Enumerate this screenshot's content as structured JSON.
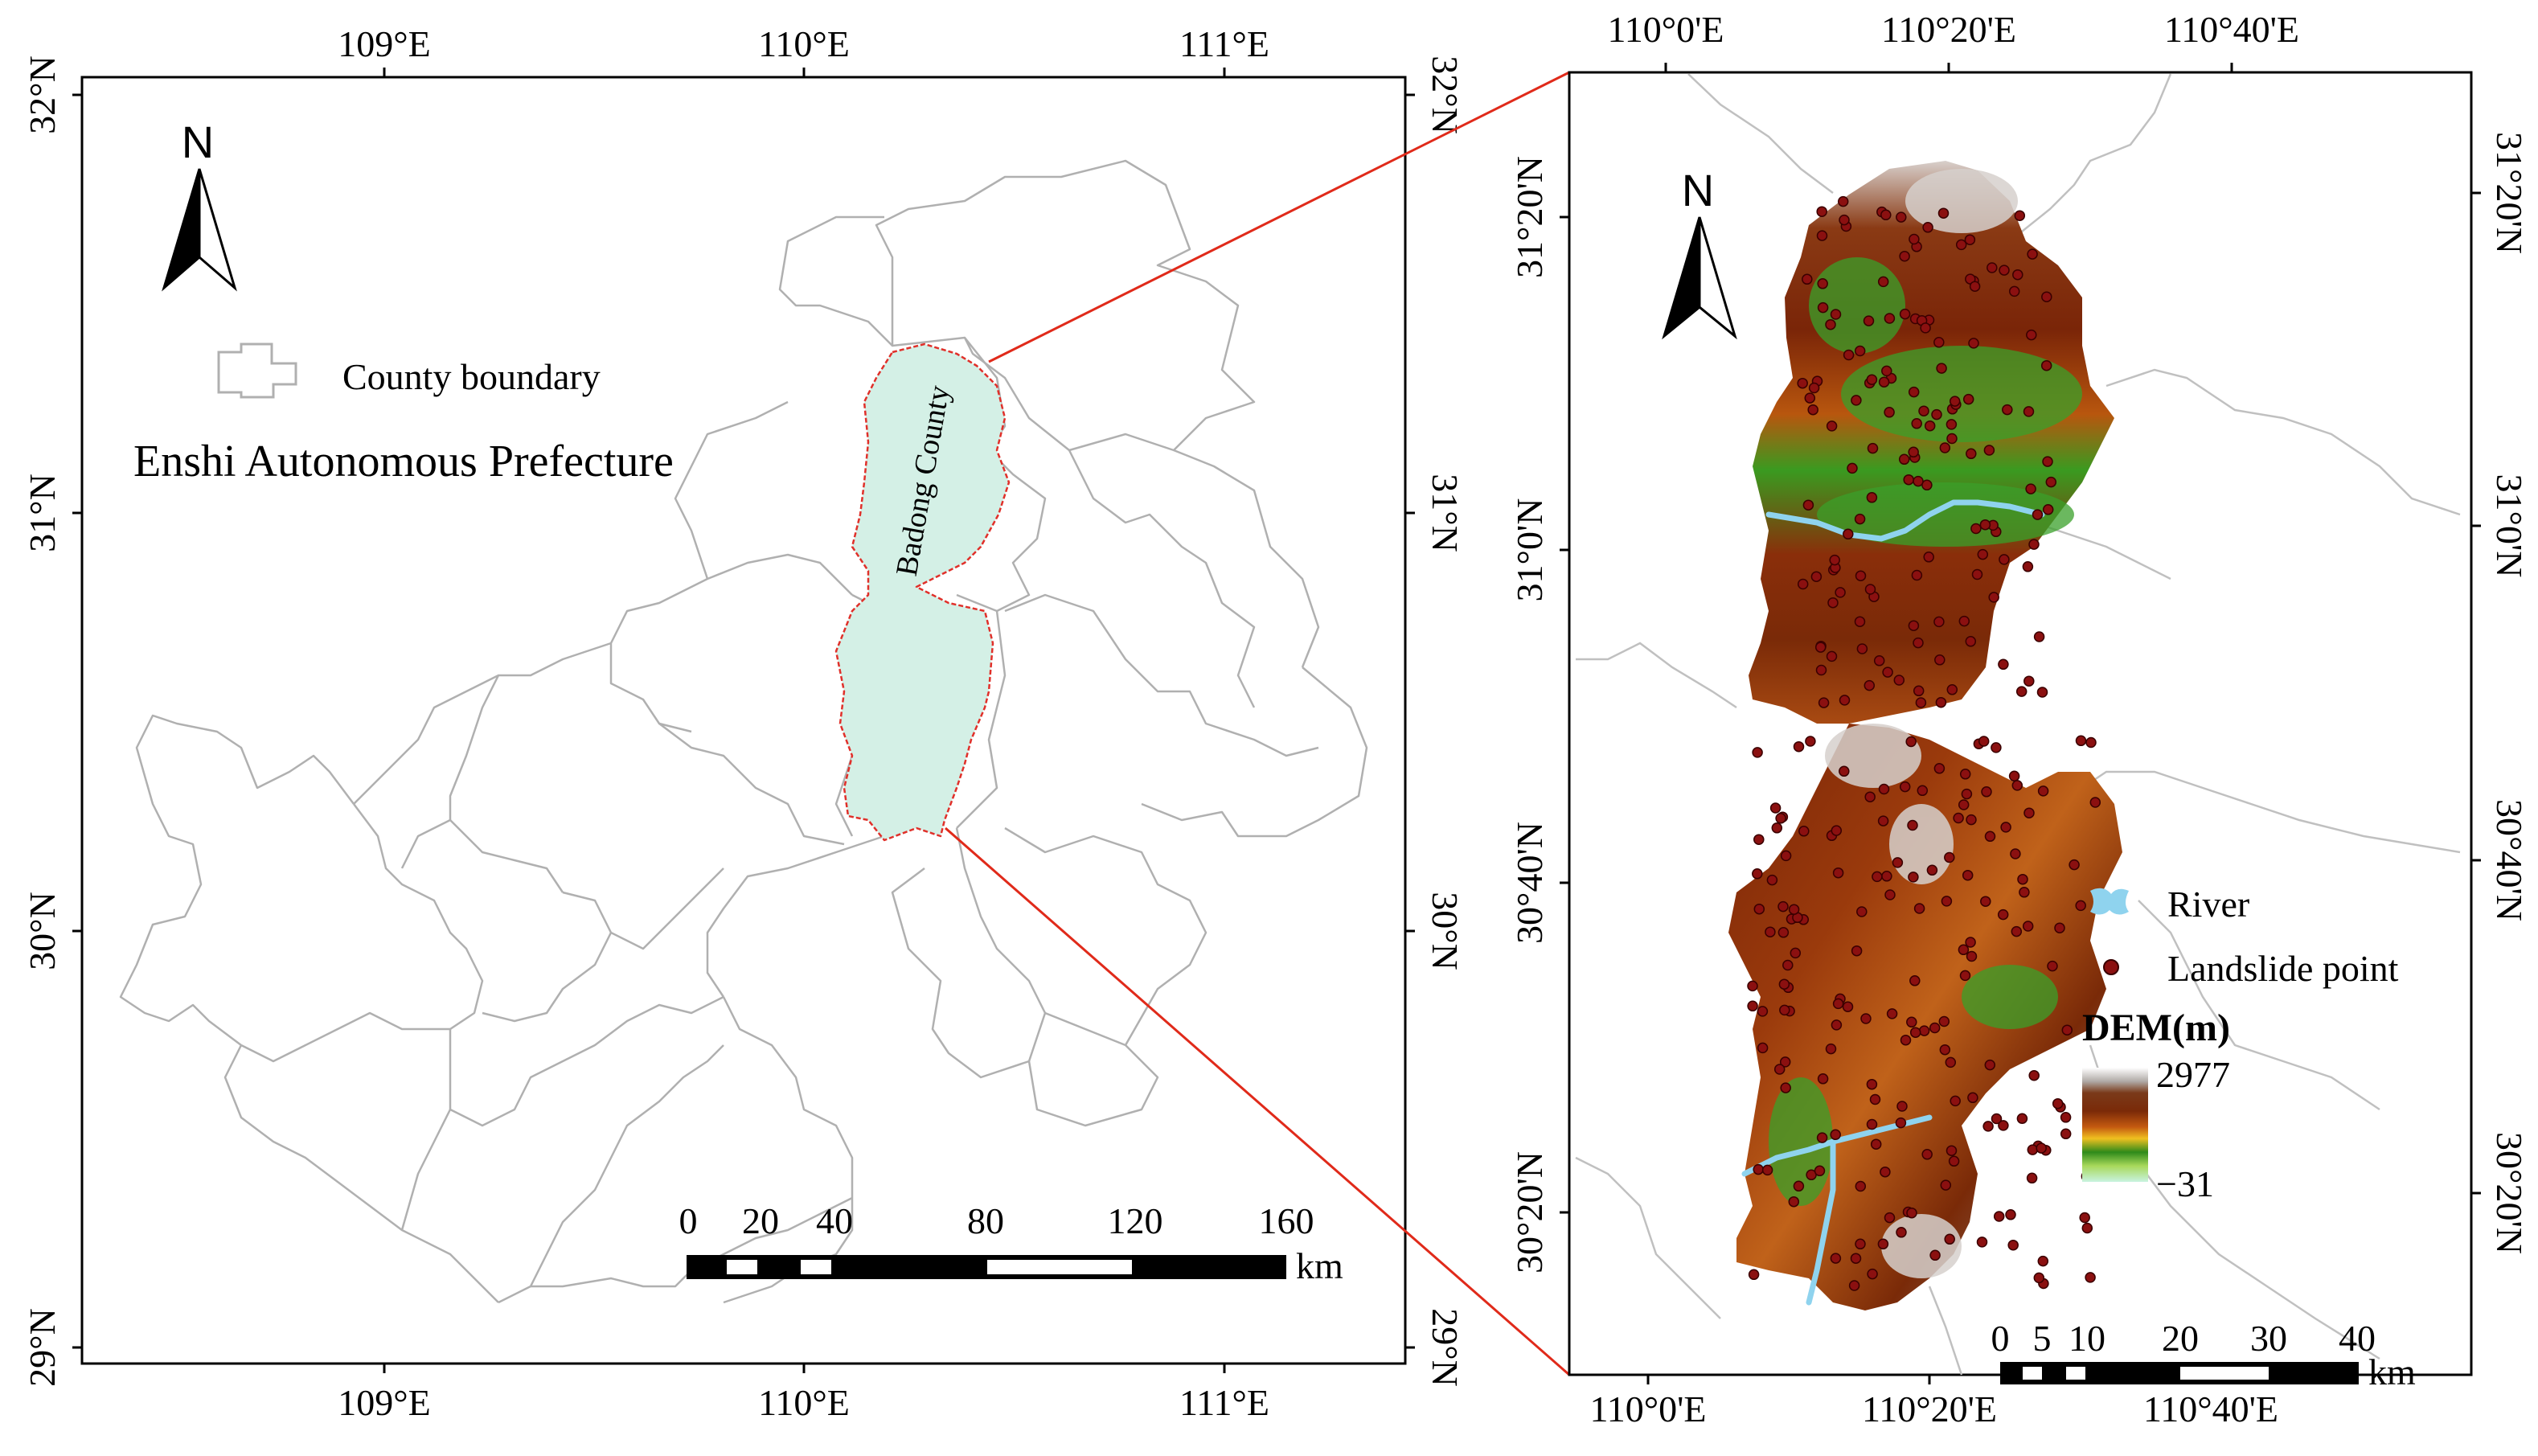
{
  "left_map": {
    "top_lon_labels": [
      "109°E",
      "110°E",
      "111°E"
    ],
    "bottom_lon_labels": [
      "109°E",
      "110°E",
      "111°E"
    ],
    "left_lat_labels": [
      "32°N",
      "31°N",
      "30°N",
      "29°N"
    ],
    "right_lat_labels": [
      "32°N",
      "31°N",
      "30°N",
      "29°N"
    ],
    "north_label": "N",
    "legend_label": "County boundary",
    "title": "Enshi  Autonomous Prefecture",
    "county_label": "Badong County",
    "scale_ticks": [
      "0",
      "20",
      "40",
      "80",
      "120",
      "160"
    ],
    "scale_unit": "km"
  },
  "right_map": {
    "top_lon_labels": [
      "110°0'E",
      "110°20'E",
      "110°40'E"
    ],
    "bottom_lon_labels": [
      "110°0'E",
      "110°20'E",
      "110°40'E"
    ],
    "left_lat_labels": [
      "31°20'N",
      "31°0'N",
      "30°40'N",
      "30°20'N"
    ],
    "right_lat_labels": [
      "31°20'N",
      "31°0'N",
      "30°40'N",
      "30°20'N"
    ],
    "north_label": "N",
    "legend": {
      "river": "River",
      "landslide": "Landslide point"
    },
    "dem": {
      "title": "DEM(m)",
      "max": "2977",
      "min": "−31"
    },
    "scale_ticks": [
      "0",
      "5",
      "10",
      "20",
      "30",
      "40"
    ],
    "scale_unit": "km"
  },
  "colors": {
    "county_fill": "#d4f0e6",
    "county_outline": "#e0302a",
    "boundary": "#b0b0b0",
    "river": "#8fd3ee",
    "landslide": "#8b1010",
    "zoom_line": "#e02a1a"
  }
}
